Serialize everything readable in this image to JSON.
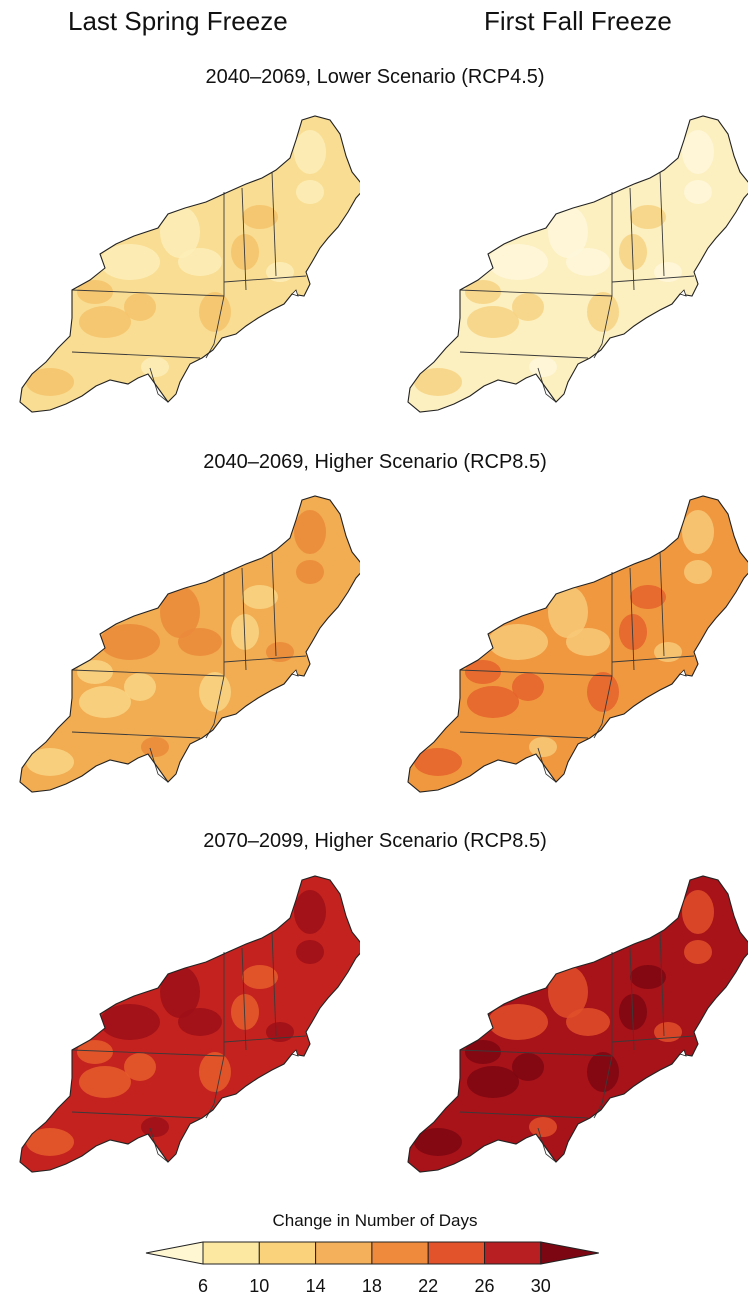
{
  "columns": [
    "Last Spring Freeze",
    "First Fall Freeze"
  ],
  "rows": [
    {
      "title": "2040–2069, Lower Scenario (RCP4.5)",
      "spring": {
        "base": "#f9dd93",
        "patches": [
          "#f4c36a",
          "#fdefb8"
        ]
      },
      "fall": {
        "base": "#fcefc0",
        "patches": [
          "#f6d281",
          "#fef7d9"
        ]
      }
    },
    {
      "title": "2040–2069, Higher Scenario (RCP8.5)",
      "spring": {
        "base": "#f2ac52",
        "patches": [
          "#f9d584",
          "#ea8a3a"
        ]
      },
      "fall": {
        "base": "#f0983f",
        "patches": [
          "#e5612c",
          "#f8c978"
        ]
      }
    },
    {
      "title": "2070–2099, Higher Scenario (RCP8.5)",
      "spring": {
        "base": "#c4221f",
        "patches": [
          "#e65c2c",
          "#9d0f17"
        ]
      },
      "fall": {
        "base": "#a81219",
        "patches": [
          "#7c0712",
          "#e0502a"
        ]
      }
    }
  ],
  "legend": {
    "title": "Change in Number of Days",
    "ticks": [
      "6",
      "10",
      "14",
      "18",
      "22",
      "26",
      "30"
    ],
    "colors": [
      "#fff7d1",
      "#fde8a1",
      "#f9d27b",
      "#f4b05a",
      "#ef8a3c",
      "#e2532b",
      "#b81f22",
      "#7c0712"
    ]
  }
}
